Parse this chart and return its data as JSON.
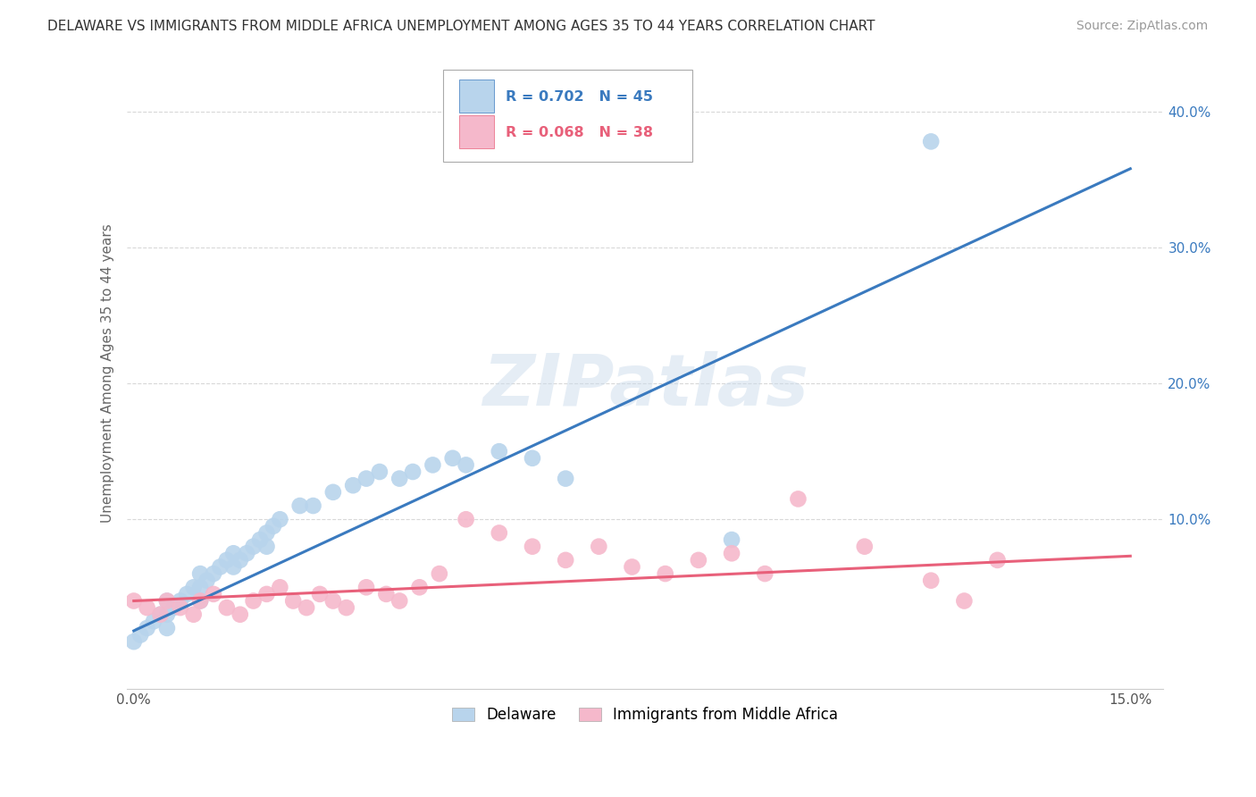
{
  "title": "DELAWARE VS IMMIGRANTS FROM MIDDLE AFRICA UNEMPLOYMENT AMONG AGES 35 TO 44 YEARS CORRELATION CHART",
  "source": "Source: ZipAtlas.com",
  "ylabel": "Unemployment Among Ages 35 to 44 years",
  "xlim": [
    -0.001,
    0.155
  ],
  "ylim": [
    -0.025,
    0.44
  ],
  "legend1_label": "Delaware",
  "legend2_label": "Immigrants from Middle Africa",
  "R1": 0.702,
  "N1": 45,
  "R2": 0.068,
  "N2": 38,
  "delaware_color": "#b8d4ec",
  "immigrant_color": "#f5b8cb",
  "line1_color": "#3a7abf",
  "line2_color": "#e8607a",
  "watermark": "ZIPatlas",
  "background_color": "#ffffff",
  "grid_color": "#d8d8d8",
  "title_color": "#333333",
  "delaware_x": [
    0.0,
    0.001,
    0.002,
    0.003,
    0.004,
    0.005,
    0.005,
    0.005,
    0.006,
    0.007,
    0.008,
    0.009,
    0.01,
    0.01,
    0.01,
    0.011,
    0.012,
    0.013,
    0.014,
    0.015,
    0.015,
    0.016,
    0.017,
    0.018,
    0.019,
    0.02,
    0.02,
    0.021,
    0.022,
    0.025,
    0.027,
    0.03,
    0.033,
    0.035,
    0.037,
    0.04,
    0.042,
    0.045,
    0.048,
    0.05,
    0.055,
    0.06,
    0.065,
    0.09,
    0.12
  ],
  "delaware_y": [
    0.01,
    0.015,
    0.02,
    0.025,
    0.03,
    0.02,
    0.03,
    0.04,
    0.035,
    0.04,
    0.045,
    0.05,
    0.04,
    0.05,
    0.06,
    0.055,
    0.06,
    0.065,
    0.07,
    0.065,
    0.075,
    0.07,
    0.075,
    0.08,
    0.085,
    0.08,
    0.09,
    0.095,
    0.1,
    0.11,
    0.11,
    0.12,
    0.125,
    0.13,
    0.135,
    0.13,
    0.135,
    0.14,
    0.145,
    0.14,
    0.15,
    0.145,
    0.13,
    0.085,
    0.378
  ],
  "immigrant_x": [
    0.0,
    0.002,
    0.004,
    0.005,
    0.007,
    0.009,
    0.01,
    0.012,
    0.014,
    0.016,
    0.018,
    0.02,
    0.022,
    0.024,
    0.026,
    0.028,
    0.03,
    0.032,
    0.035,
    0.038,
    0.04,
    0.043,
    0.046,
    0.05,
    0.055,
    0.06,
    0.065,
    0.07,
    0.075,
    0.08,
    0.085,
    0.09,
    0.095,
    0.1,
    0.11,
    0.12,
    0.125,
    0.13
  ],
  "immigrant_y": [
    0.04,
    0.035,
    0.03,
    0.04,
    0.035,
    0.03,
    0.04,
    0.045,
    0.035,
    0.03,
    0.04,
    0.045,
    0.05,
    0.04,
    0.035,
    0.045,
    0.04,
    0.035,
    0.05,
    0.045,
    0.04,
    0.05,
    0.06,
    0.1,
    0.09,
    0.08,
    0.07,
    0.08,
    0.065,
    0.06,
    0.07,
    0.075,
    0.06,
    0.115,
    0.08,
    0.055,
    0.04,
    0.07
  ]
}
